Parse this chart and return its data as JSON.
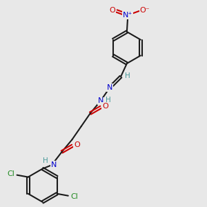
{
  "background_color": "#e8e8e8",
  "bond_color": "#1a1a1a",
  "atom_colors": {
    "N": "#0000cc",
    "O": "#cc0000",
    "Cl": "#228B22",
    "H": "#4a9a9a",
    "C": "#1a1a1a"
  },
  "figsize": [
    3.0,
    3.0
  ],
  "dpi": 100
}
